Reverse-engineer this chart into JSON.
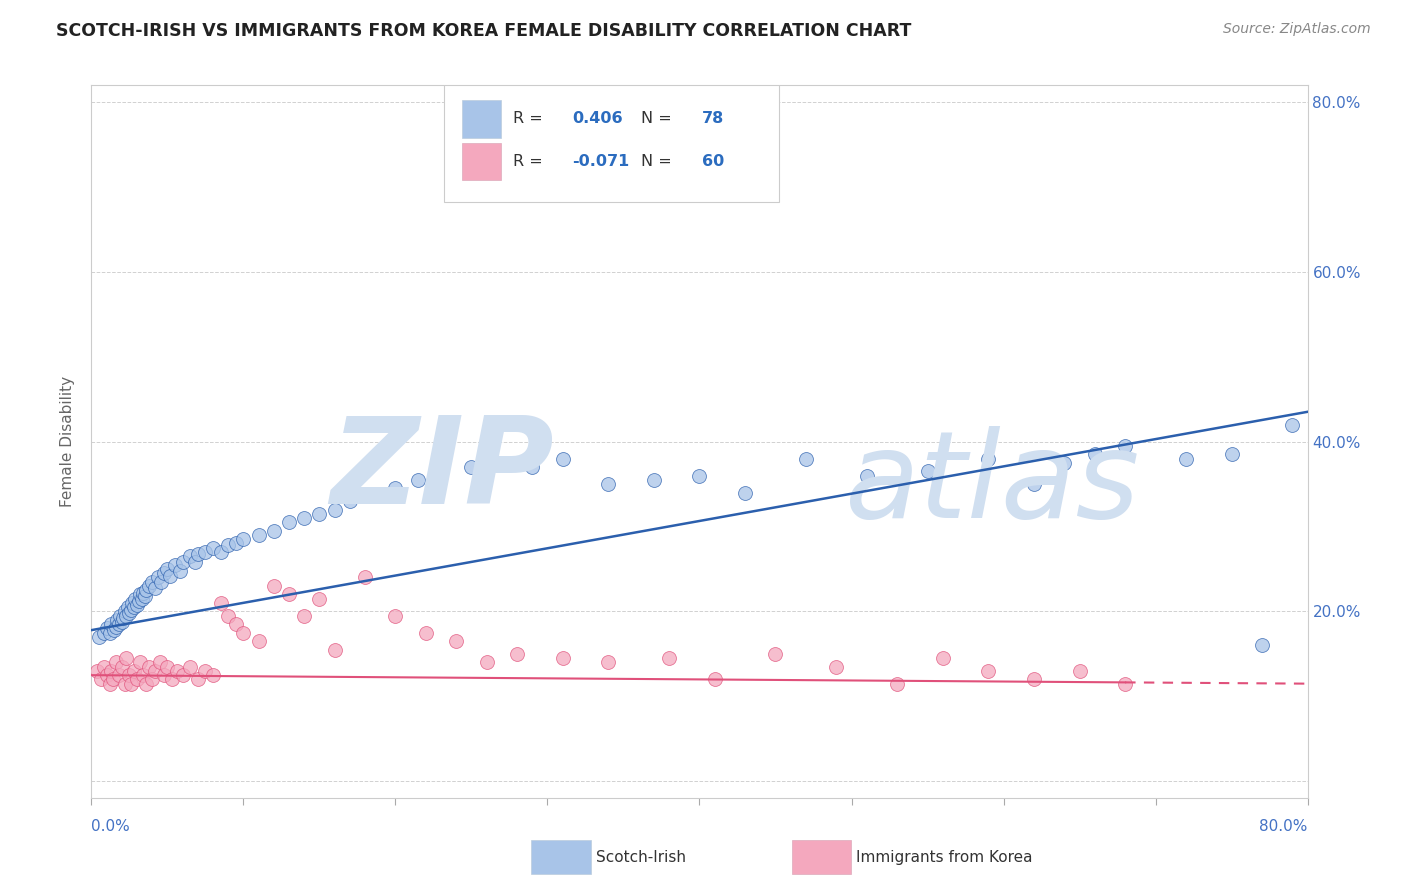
{
  "title": "SCOTCH-IRISH VS IMMIGRANTS FROM KOREA FEMALE DISABILITY CORRELATION CHART",
  "source": "Source: ZipAtlas.com",
  "ylabel": "Female Disability",
  "series1_name": "Scotch-Irish",
  "series1_color": "#a8c4e8",
  "series1_R": 0.406,
  "series1_N": 78,
  "series1_line_color": "#2b5fad",
  "series2_name": "Immigrants from Korea",
  "series2_color": "#f4a8be",
  "series2_R": -0.071,
  "series2_N": 60,
  "series2_line_color": "#e0507a",
  "watermark_zip": "ZIP",
  "watermark_atlas": "atlas",
  "watermark_color": "#d0dff0",
  "xlim": [
    0.0,
    0.8
  ],
  "ylim": [
    -0.02,
    0.82
  ],
  "background_color": "#ffffff",
  "grid_color": "#cccccc",
  "title_color": "#222222",
  "si_line_start": 0.178,
  "si_line_end": 0.435,
  "kr_line_start": 0.125,
  "kr_line_end": 0.115,
  "scotch_irish_x": [
    0.005,
    0.008,
    0.01,
    0.012,
    0.013,
    0.015,
    0.016,
    0.017,
    0.018,
    0.019,
    0.02,
    0.021,
    0.022,
    0.023,
    0.024,
    0.025,
    0.026,
    0.027,
    0.028,
    0.029,
    0.03,
    0.031,
    0.032,
    0.033,
    0.034,
    0.035,
    0.036,
    0.038,
    0.04,
    0.042,
    0.044,
    0.046,
    0.048,
    0.05,
    0.052,
    0.055,
    0.058,
    0.06,
    0.065,
    0.068,
    0.07,
    0.075,
    0.08,
    0.085,
    0.09,
    0.095,
    0.1,
    0.11,
    0.12,
    0.13,
    0.14,
    0.15,
    0.16,
    0.17,
    0.185,
    0.2,
    0.215,
    0.23,
    0.25,
    0.27,
    0.29,
    0.31,
    0.34,
    0.37,
    0.4,
    0.43,
    0.47,
    0.51,
    0.55,
    0.59,
    0.62,
    0.64,
    0.66,
    0.68,
    0.72,
    0.75,
    0.77,
    0.79
  ],
  "scotch_irish_y": [
    0.17,
    0.175,
    0.18,
    0.175,
    0.185,
    0.178,
    0.182,
    0.19,
    0.185,
    0.195,
    0.188,
    0.192,
    0.2,
    0.195,
    0.205,
    0.198,
    0.202,
    0.21,
    0.205,
    0.215,
    0.208,
    0.212,
    0.22,
    0.215,
    0.222,
    0.218,
    0.225,
    0.23,
    0.235,
    0.228,
    0.24,
    0.235,
    0.245,
    0.25,
    0.242,
    0.255,
    0.248,
    0.258,
    0.265,
    0.258,
    0.268,
    0.27,
    0.275,
    0.27,
    0.278,
    0.28,
    0.285,
    0.29,
    0.295,
    0.305,
    0.31,
    0.315,
    0.32,
    0.33,
    0.338,
    0.345,
    0.355,
    0.365,
    0.37,
    0.375,
    0.37,
    0.38,
    0.35,
    0.355,
    0.36,
    0.34,
    0.38,
    0.36,
    0.365,
    0.38,
    0.35,
    0.375,
    0.385,
    0.395,
    0.38,
    0.385,
    0.16,
    0.42
  ],
  "korea_x": [
    0.004,
    0.006,
    0.008,
    0.01,
    0.012,
    0.013,
    0.014,
    0.016,
    0.018,
    0.02,
    0.022,
    0.023,
    0.025,
    0.026,
    0.028,
    0.03,
    0.032,
    0.034,
    0.036,
    0.038,
    0.04,
    0.042,
    0.045,
    0.048,
    0.05,
    0.053,
    0.056,
    0.06,
    0.065,
    0.07,
    0.075,
    0.08,
    0.085,
    0.09,
    0.095,
    0.1,
    0.11,
    0.12,
    0.13,
    0.14,
    0.15,
    0.16,
    0.18,
    0.2,
    0.22,
    0.24,
    0.26,
    0.28,
    0.31,
    0.34,
    0.38,
    0.41,
    0.45,
    0.49,
    0.53,
    0.56,
    0.59,
    0.62,
    0.65,
    0.68
  ],
  "korea_y": [
    0.13,
    0.12,
    0.135,
    0.125,
    0.115,
    0.13,
    0.12,
    0.14,
    0.125,
    0.135,
    0.115,
    0.145,
    0.125,
    0.115,
    0.13,
    0.12,
    0.14,
    0.125,
    0.115,
    0.135,
    0.12,
    0.13,
    0.14,
    0.125,
    0.135,
    0.12,
    0.13,
    0.125,
    0.135,
    0.12,
    0.13,
    0.125,
    0.21,
    0.195,
    0.185,
    0.175,
    0.165,
    0.23,
    0.22,
    0.195,
    0.215,
    0.155,
    0.24,
    0.195,
    0.175,
    0.165,
    0.14,
    0.15,
    0.145,
    0.14,
    0.145,
    0.12,
    0.15,
    0.135,
    0.115,
    0.145,
    0.13,
    0.12,
    0.13,
    0.115
  ]
}
